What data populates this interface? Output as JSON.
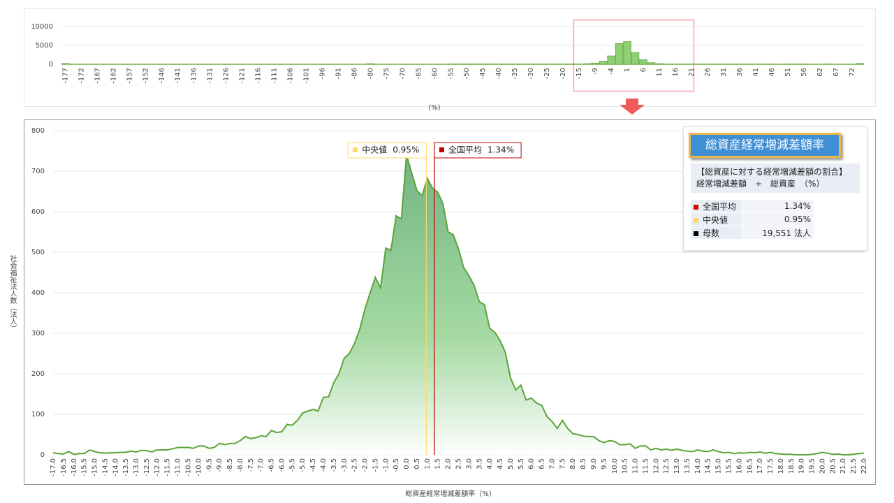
{
  "chart_data": [
    {
      "type": "bar",
      "xlabel": "(%)",
      "color": "#70ad47",
      "ylim": [
        0,
        10000
      ],
      "yticks": [
        0,
        5000,
        10000
      ],
      "grid": true,
      "categories": [
        "-177",
        null,
        "-172",
        null,
        "-167",
        null,
        "-162",
        null,
        "-157",
        null,
        "-152",
        null,
        "-146",
        null,
        "-141",
        null,
        "-136",
        null,
        "-131",
        null,
        "-126",
        null,
        "-121",
        null,
        "-116",
        null,
        "-111",
        null,
        "-106",
        null,
        "-101",
        null,
        "-96",
        null,
        "-91",
        null,
        "-86",
        null,
        "-80",
        null,
        "-75",
        null,
        "-70",
        null,
        "-65",
        null,
        "-60",
        null,
        "-55",
        null,
        "-50",
        null,
        "-45",
        null,
        "-40",
        null,
        "-35",
        null,
        "-30",
        null,
        "-25",
        null,
        "-20",
        null,
        "-15",
        null,
        "-9",
        null,
        "-4",
        null,
        "1",
        null,
        "6",
        null,
        "11",
        null,
        "16",
        null,
        "21",
        null,
        "26",
        null,
        "31",
        null,
        "36",
        null,
        "41",
        null,
        "46",
        null,
        "51",
        null,
        "56",
        null,
        "62",
        null,
        "67",
        null,
        "72",
        null
      ],
      "values": [
        200,
        0,
        0,
        0,
        0,
        0,
        0,
        0,
        0,
        0,
        0,
        0,
        0,
        0,
        0,
        0,
        0,
        0,
        0,
        0,
        0,
        0,
        0,
        0,
        0,
        0,
        0,
        0,
        0,
        0,
        0,
        0,
        0,
        0,
        0,
        0,
        0,
        0,
        150,
        0,
        0,
        0,
        0,
        0,
        0,
        0,
        0,
        0,
        100,
        100,
        100,
        100,
        100,
        100,
        80,
        80,
        80,
        80,
        80,
        80,
        80,
        80,
        80,
        80,
        50,
        150,
        300,
        800,
        2200,
        5500,
        6000,
        3100,
        1200,
        400,
        150,
        50,
        50,
        50,
        50,
        50,
        50,
        50,
        50,
        50,
        50,
        50,
        50,
        50,
        50,
        0,
        80,
        80,
        80,
        0,
        0,
        100,
        0,
        0,
        0,
        200
      ]
    },
    {
      "type": "area",
      "xlabel": "総資産経常増減差額率（%）",
      "ylabel": "社会福祉法人数（法人）",
      "color": "#5da33b",
      "xlim": [
        -17,
        22
      ],
      "ylim": [
        0,
        800
      ],
      "yticks": [
        0,
        100,
        200,
        300,
        400,
        500,
        600,
        700,
        800
      ],
      "grid": true,
      "categories": [
        "-17.0",
        null,
        "-16.5",
        null,
        "-16.0",
        null,
        "-15.5",
        null,
        "-15.0",
        null,
        "-14.5",
        null,
        "-14.0",
        null,
        "-13.5",
        null,
        "-13.0",
        null,
        "-12.5",
        null,
        "-12.0",
        null,
        "-11.5",
        null,
        "-11.0",
        null,
        "-10.5",
        null,
        "-10.0",
        null,
        "-9.5",
        null,
        "-9.0",
        null,
        "-8.5",
        null,
        "-8.0",
        null,
        "-7.5",
        null,
        "-7.0",
        null,
        "-6.5",
        null,
        "-6.0",
        null,
        "-5.5",
        null,
        "-5.0",
        null,
        "-4.5",
        null,
        "-4.0",
        null,
        "-3.5",
        null,
        "-3.0",
        null,
        "-2.5",
        null,
        "-2.0",
        null,
        "-1.5",
        null,
        "-1.0",
        null,
        "-0.5",
        null,
        "0.0",
        null,
        "0.5",
        null,
        "1.0",
        null,
        "1.5",
        null,
        "2.0",
        null,
        "2.5",
        null,
        "3.0",
        null,
        "3.5",
        null,
        "4.0",
        null,
        "4.5",
        null,
        "5.0",
        null,
        "5.5",
        null,
        "6.0",
        null,
        "6.5",
        null,
        "7.0",
        null,
        "7.5",
        null,
        "8.0",
        null,
        "8.5",
        null,
        "9.0",
        null,
        "9.5",
        null,
        "10.0",
        null,
        "10.5",
        null,
        "11.0",
        null,
        "11.5",
        null,
        "12.0",
        null,
        "12.5",
        null,
        "13.0",
        null,
        "13.5",
        null,
        "14.0",
        null,
        "14.5",
        null,
        "15.0",
        null,
        "15.5",
        null,
        "16.0",
        null,
        "16.5",
        null,
        "17.0",
        null,
        "17.5",
        null,
        "18.0",
        null,
        "18.5",
        null,
        "19.0",
        null,
        "19.5",
        null,
        "20.0",
        null,
        "20.5",
        null,
        "21.0",
        null,
        "21.5",
        null,
        "22.0"
      ],
      "values": [
        5,
        3,
        2,
        8,
        1,
        3,
        3,
        12,
        8,
        5,
        4,
        5,
        5,
        6,
        6,
        9,
        7,
        11,
        10,
        7,
        12,
        12,
        12,
        15,
        18,
        18,
        18,
        16,
        22,
        22,
        16,
        18,
        28,
        25,
        28,
        28,
        35,
        45,
        40,
        42,
        47,
        45,
        60,
        55,
        57,
        75,
        73,
        85,
        103,
        108,
        112,
        108,
        142,
        143,
        178,
        200,
        238,
        250,
        275,
        310,
        360,
        400,
        438,
        412,
        510,
        505,
        590,
        582,
        740,
        695,
        652,
        640,
        682,
        658,
        648,
        620,
        550,
        543,
        508,
        462,
        442,
        418,
        378,
        370,
        312,
        302,
        282,
        253,
        190,
        160,
        172,
        135,
        140,
        128,
        122,
        95,
        82,
        65,
        85,
        65,
        52,
        50,
        46,
        45,
        45,
        35,
        30,
        35,
        33,
        25,
        25,
        27,
        16,
        22,
        22,
        12,
        16,
        12,
        14,
        11,
        14,
        11,
        9,
        8,
        12,
        9,
        8,
        12,
        8,
        5,
        6,
        3,
        5,
        4,
        6,
        5,
        7,
        4,
        6,
        3,
        2,
        1,
        1,
        0,
        0,
        0,
        1,
        3,
        6,
        4,
        1,
        2,
        0,
        0,
        1,
        3,
        4
      ],
      "markers": [
        {
          "label": "中央値",
          "value": 0.95,
          "value_label": "0.95%",
          "color": "#ffd966"
        },
        {
          "label": "全国平均",
          "value": 1.34,
          "value_label": "1.34%",
          "color": "#c00000"
        }
      ]
    }
  ],
  "info_panel": {
    "title": "総資産経常増減差額率",
    "description": [
      "【総資産に対する経常増減差額の割合】",
      "経常増減差額　÷　総資産　（%）"
    ],
    "rows": [
      {
        "label": "全国平均",
        "value": "1.34%",
        "color": "#e00000"
      },
      {
        "label": "中央値",
        "value": "0.95%",
        "color": "#ffd966"
      },
      {
        "label": "母数",
        "value": "19,551 法人",
        "color": "#000000"
      }
    ]
  }
}
